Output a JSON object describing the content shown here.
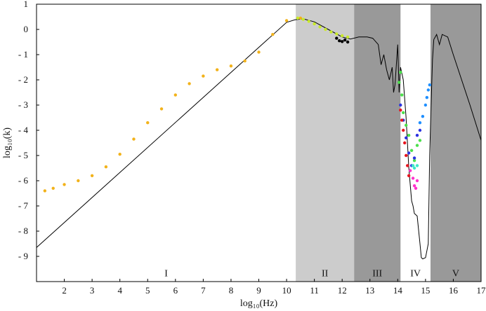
{
  "chart_data": {
    "type": "line",
    "title": "",
    "xlabel": "log₁₀(Hz)",
    "ylabel": "log₁₀(k)",
    "xlim": [
      1,
      17
    ],
    "ylim": [
      -10,
      1
    ],
    "xticks": [
      2,
      3,
      4,
      5,
      6,
      7,
      8,
      9,
      10,
      11,
      12,
      13,
      14,
      15,
      16,
      17
    ],
    "yticks": [
      1,
      0,
      -1,
      -2,
      -3,
      -4,
      -5,
      -6,
      -7,
      -8,
      -9
    ],
    "ytick_labels": [
      "1",
      "0",
      "- 1",
      "- 2",
      "- 3",
      "- 4",
      "- 5",
      "- 6",
      "- 7",
      "- 8",
      "- 9"
    ],
    "grid": false,
    "bands": [
      {
        "label": "I",
        "x0": 1,
        "x1": 10.33,
        "color": "#ffffff"
      },
      {
        "label": "II",
        "x0": 10.33,
        "x1": 12.43,
        "color": "#cccccc"
      },
      {
        "label": "III",
        "x0": 12.43,
        "x1": 14.1,
        "color": "#999999"
      },
      {
        "label": "IV",
        "x0": 14.1,
        "x1": 15.18,
        "color": "#ffffff"
      },
      {
        "label": "V",
        "x0": 15.18,
        "x1": 17,
        "color": "#999999"
      }
    ],
    "band_label_y": -9.65,
    "series": [
      {
        "style": "line",
        "color": "#000000",
        "x": [
          1,
          10,
          10.3,
          10.6,
          11.0,
          11.5,
          12.0,
          12.3,
          12.6,
          12.9,
          13.1,
          13.3,
          13.4,
          13.5,
          13.6,
          13.7,
          13.8,
          13.85,
          13.9,
          14.0,
          14.05,
          14.1,
          14.2,
          14.3,
          14.4,
          14.5,
          14.55,
          14.6,
          14.7,
          14.8,
          14.85,
          14.9,
          15.0,
          15.1,
          15.15,
          15.2,
          15.25,
          15.3,
          15.4,
          15.5,
          15.6,
          15.8,
          16.0,
          16.3,
          16.6,
          17.0
        ],
        "y": [
          -8.65,
          0.28,
          0.38,
          0.42,
          0.3,
          0.0,
          -0.3,
          -0.38,
          -0.3,
          -0.3,
          -0.35,
          -0.6,
          -1.4,
          -1.0,
          -1.6,
          -2.0,
          -1.5,
          -2.5,
          -2.2,
          -0.6,
          -2.5,
          -1.5,
          -2.0,
          -3.5,
          -5.5,
          -6.8,
          -7.0,
          -7.3,
          -7.4,
          -8.5,
          -9.05,
          -9.1,
          -9.05,
          -8.5,
          -5.0,
          -3.0,
          -1.2,
          -0.4,
          -0.2,
          -0.6,
          -0.2,
          -0.3,
          -1.0,
          -2.0,
          -3.0,
          -4.4
        ]
      },
      {
        "style": "dots",
        "color": "#f2b21a",
        "x": [
          1.3,
          1.6,
          2.0,
          2.5,
          3.0,
          3.5,
          4.0,
          4.5,
          5.0,
          5.5,
          6.0,
          6.5,
          7.0,
          7.5,
          8.0,
          8.5,
          9.0,
          9.5,
          10.0,
          10.5
        ],
        "y": [
          -6.4,
          -6.3,
          -6.15,
          -6.0,
          -5.8,
          -5.45,
          -4.95,
          -4.35,
          -3.7,
          -3.15,
          -2.6,
          -2.15,
          -1.85,
          -1.6,
          -1.45,
          -1.25,
          -0.9,
          -0.2,
          0.35,
          0.45
        ]
      },
      {
        "style": "dots",
        "color": "#c9ea2a",
        "x": [
          10.4,
          10.6,
          10.8,
          11.0,
          11.2,
          11.4,
          11.6,
          11.8,
          12.0,
          12.2
        ],
        "y": [
          0.45,
          0.4,
          0.32,
          0.22,
          0.1,
          0.0,
          -0.1,
          -0.18,
          -0.25,
          -0.3
        ]
      },
      {
        "style": "dots",
        "color": "#000000",
        "x": [
          11.8,
          11.9,
          12.0,
          12.1,
          12.2
        ],
        "y": [
          -0.35,
          -0.45,
          -0.48,
          -0.42,
          -0.5
        ]
      },
      {
        "style": "dots",
        "color": "#4be04b",
        "x": [
          14.05,
          14.1,
          14.15,
          14.2,
          14.3,
          14.4,
          14.5,
          14.6,
          14.7,
          14.8
        ],
        "y": [
          -2.1,
          -1.7,
          -2.6,
          -3.3,
          -3.8,
          -4.2,
          -4.8,
          -5.2,
          -4.6,
          -4.4
        ]
      },
      {
        "style": "dots",
        "color": "#1f8fff",
        "x": [
          14.8,
          14.9,
          15.0,
          15.05,
          15.1,
          15.15
        ],
        "y": [
          -3.7,
          -3.45,
          -3.0,
          -2.7,
          -2.4,
          -2.2
        ]
      },
      {
        "style": "dots",
        "color": "#2a32e0",
        "x": [
          14.1,
          14.2,
          14.3,
          14.4,
          14.5,
          14.6,
          14.7,
          14.8
        ],
        "y": [
          -3.0,
          -3.6,
          -4.3,
          -4.9,
          -5.4,
          -5.1,
          -4.2,
          -4.0
        ]
      },
      {
        "style": "dots",
        "color": "#e8141e",
        "x": [
          14.1,
          14.15,
          14.2,
          14.25,
          14.3,
          14.35,
          14.4
        ],
        "y": [
          -3.2,
          -3.6,
          -4.0,
          -4.5,
          -5.0,
          -5.4,
          -5.8
        ]
      },
      {
        "style": "dots",
        "color": "#ff33cc",
        "x": [
          14.45,
          14.55,
          14.6,
          14.65,
          14.7
        ],
        "y": [
          -5.6,
          -5.9,
          -6.2,
          -6.3,
          -6.0
        ]
      },
      {
        "style": "dots",
        "color": "#3ee8c8",
        "x": [
          14.55,
          14.6,
          14.7
        ],
        "y": [
          -5.4,
          -5.5,
          -5.4
        ]
      }
    ]
  }
}
